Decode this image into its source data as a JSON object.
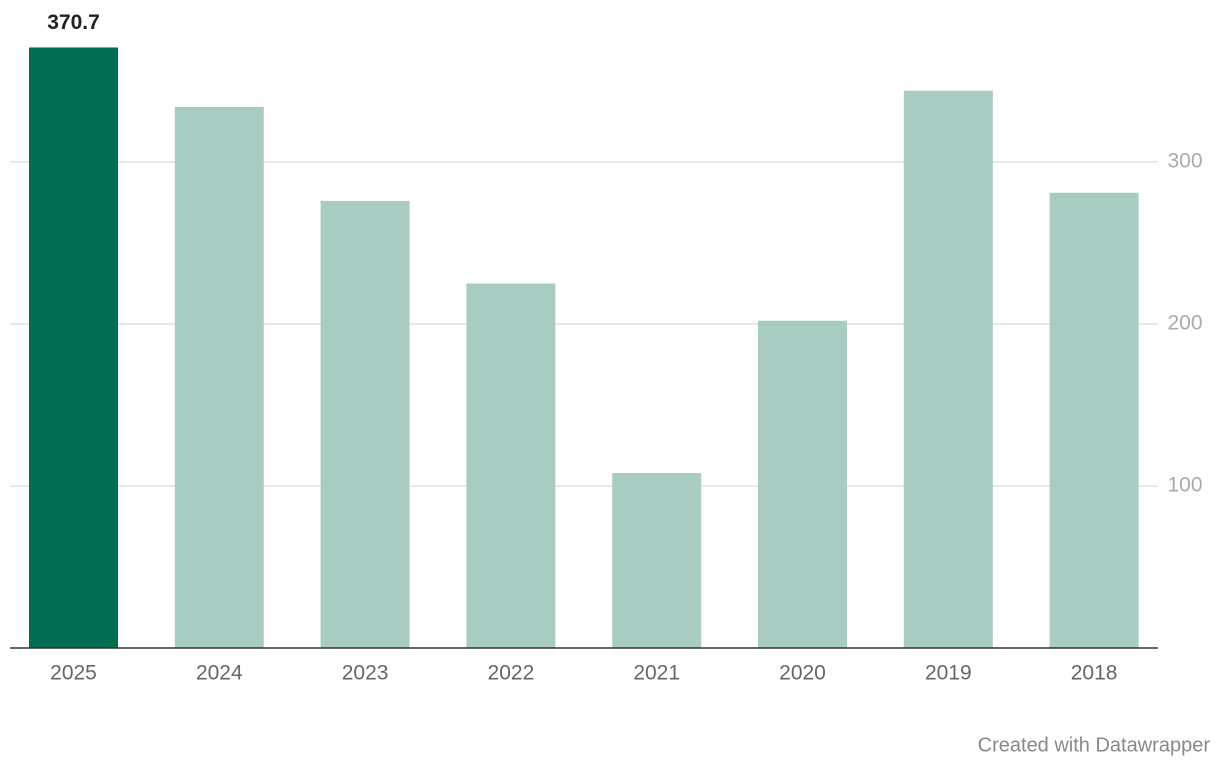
{
  "chart_data": {
    "type": "bar",
    "categories": [
      "2025",
      "2024",
      "2023",
      "2022",
      "2021",
      "2020",
      "2019",
      "2018"
    ],
    "values": [
      370.7,
      334,
      276,
      225,
      108,
      202,
      344,
      281
    ],
    "value_labels": [
      "370.7",
      null,
      null,
      null,
      null,
      null,
      null,
      null
    ],
    "colors": [
      "#006f51",
      "#a8cbc2",
      "#a8cbc2",
      "#a8cbc2",
      "#a8cbc2",
      "#a8cbc2",
      "#a8cbc2",
      "#a8cbc2"
    ],
    "ylim": [
      0,
      400
    ],
    "yticks": [
      100,
      200,
      300
    ],
    "grid": true,
    "y_axis_side": "right",
    "credit": "Created with Datawrapper"
  }
}
